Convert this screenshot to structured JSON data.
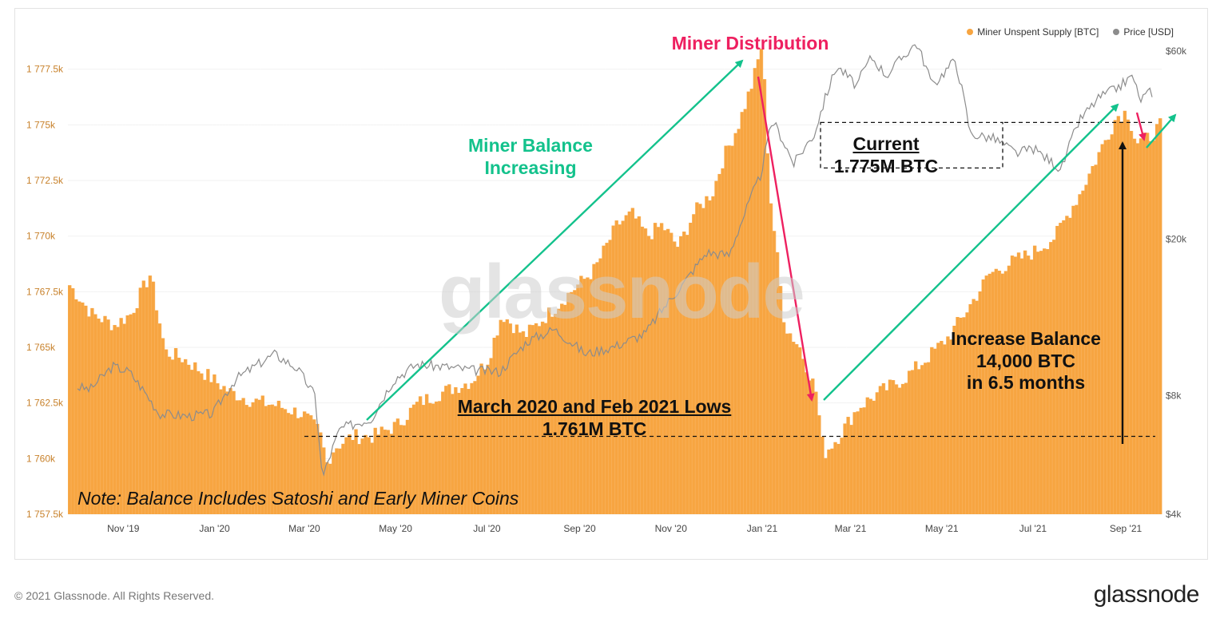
{
  "legend": {
    "supply_label": "Miner Unspent Supply [BTC]",
    "price_label": "Price [USD]"
  },
  "watermark": "glassnode",
  "colors": {
    "supply": "#f7a541",
    "price": "#8c8c8c",
    "green": "#13c28c",
    "red": "#ee2060",
    "axis_left": "#c8822c"
  },
  "annotations": {
    "miner_distribution": "Miner Distribution",
    "balance_increasing_1": "Miner Balance",
    "balance_increasing_2": "Increasing",
    "current_1": "Current",
    "current_2": "1.775M BTC",
    "lows_1": "March 2020 and Feb 2021 Lows",
    "lows_2": "1.761M BTC",
    "increase_1": "Increase Balance",
    "increase_2": "14,000 BTC",
    "increase_3": "in 6.5 months",
    "note": "Note: Balance Includes Satoshi and Early Miner Coins"
  },
  "footer": {
    "copyright": "© 2021 Glassnode. All Rights Reserved.",
    "brand": "glassnode"
  },
  "chart_data": {
    "type": "bar",
    "title": "",
    "x_tick_labels": [
      "Nov '19",
      "Jan '20",
      "Mar '20",
      "May '20",
      "Jul '20",
      "Sep '20",
      "Nov '20",
      "Jan '21",
      "Mar '21",
      "May '21",
      "Jul '21",
      "Sep '21"
    ],
    "x_range": [
      "2019-09-25",
      "2021-09-25"
    ],
    "y_left": {
      "label": "Miner Unspent Supply [BTC]",
      "ticks": [
        "1 757.5k",
        "1 760k",
        "1 762.5k",
        "1 765k",
        "1 767.5k",
        "1 770k",
        "1 772.5k",
        "1 775k",
        "1 777.5k"
      ],
      "range": [
        1757500,
        1779500
      ]
    },
    "y_right": {
      "label": "Price [USD]",
      "scale": "log",
      "ticks": [
        "$4k",
        "$8k",
        "$20k",
        "$60k"
      ],
      "range": [
        4000,
        70000
      ]
    },
    "series": [
      {
        "name": "Miner Unspent Supply [BTC]",
        "kind": "bar",
        "points": [
          [
            "2019-09-25",
            1767800
          ],
          [
            "2019-10-10",
            1766500
          ],
          [
            "2019-10-25",
            1766000
          ],
          [
            "2019-11-05",
            1766500
          ],
          [
            "2019-11-18",
            1768300
          ],
          [
            "2019-11-28",
            1764800
          ],
          [
            "2019-12-10",
            1764500
          ],
          [
            "2019-12-25",
            1763800
          ],
          [
            "2020-01-10",
            1763000
          ],
          [
            "2020-01-25",
            1762600
          ],
          [
            "2020-02-10",
            1762400
          ],
          [
            "2020-02-28",
            1762000
          ],
          [
            "2020-03-10",
            1761200
          ],
          [
            "2020-03-15",
            1759800
          ],
          [
            "2020-03-20",
            1760500
          ],
          [
            "2020-04-01",
            1761000
          ],
          [
            "2020-04-15",
            1761000
          ],
          [
            "2020-05-01",
            1761500
          ],
          [
            "2020-05-15",
            1762500
          ],
          [
            "2020-06-01",
            1763000
          ],
          [
            "2020-06-20",
            1763500
          ],
          [
            "2020-07-01",
            1764500
          ],
          [
            "2020-07-10",
            1766500
          ],
          [
            "2020-07-25",
            1765500
          ],
          [
            "2020-08-10",
            1766500
          ],
          [
            "2020-08-25",
            1767500
          ],
          [
            "2020-09-10",
            1768500
          ],
          [
            "2020-09-25",
            1770500
          ],
          [
            "2020-10-05",
            1771000
          ],
          [
            "2020-10-15",
            1770000
          ],
          [
            "2020-10-25",
            1770500
          ],
          [
            "2020-11-05",
            1769500
          ],
          [
            "2020-11-15",
            1771000
          ],
          [
            "2020-11-28",
            1772000
          ],
          [
            "2020-12-05",
            1773500
          ],
          [
            "2020-12-15",
            1775000
          ],
          [
            "2020-12-25",
            1777000
          ],
          [
            "2020-12-31",
            1778700
          ],
          [
            "2021-01-05",
            1772000
          ],
          [
            "2021-01-15",
            1766000
          ],
          [
            "2021-01-25",
            1765000
          ],
          [
            "2021-02-05",
            1763000
          ],
          [
            "2021-02-10",
            1760200
          ],
          [
            "2021-02-20",
            1761000
          ],
          [
            "2021-03-05",
            1762300
          ],
          [
            "2021-03-20",
            1763000
          ],
          [
            "2021-04-05",
            1763600
          ],
          [
            "2021-04-20",
            1764500
          ],
          [
            "2021-05-05",
            1765500
          ],
          [
            "2021-05-20",
            1767000
          ],
          [
            "2021-06-01",
            1768300
          ],
          [
            "2021-06-15",
            1768800
          ],
          [
            "2021-07-01",
            1769300
          ],
          [
            "2021-07-15",
            1770000
          ],
          [
            "2021-08-01",
            1772000
          ],
          [
            "2021-08-15",
            1774000
          ],
          [
            "2021-08-25",
            1775400
          ],
          [
            "2021-09-01",
            1775600
          ],
          [
            "2021-09-07",
            1774200
          ],
          [
            "2021-09-15",
            1774400
          ],
          [
            "2021-09-25",
            1775100
          ]
        ]
      },
      {
        "name": "Price [USD]",
        "kind": "line",
        "points": [
          [
            "2019-09-25",
            8500
          ],
          [
            "2019-10-10",
            8300
          ],
          [
            "2019-10-25",
            9500
          ],
          [
            "2019-11-05",
            9200
          ],
          [
            "2019-11-25",
            7200
          ],
          [
            "2019-12-15",
            7100
          ],
          [
            "2019-12-31",
            7200
          ],
          [
            "2020-01-15",
            8800
          ],
          [
            "2020-02-10",
            10200
          ],
          [
            "2020-02-25",
            9400
          ],
          [
            "2020-03-08",
            8000
          ],
          [
            "2020-03-13",
            4900
          ],
          [
            "2020-03-25",
            6600
          ],
          [
            "2020-04-15",
            7000
          ],
          [
            "2020-04-30",
            8800
          ],
          [
            "2020-05-15",
            9600
          ],
          [
            "2020-06-01",
            9500
          ],
          [
            "2020-06-20",
            9300
          ],
          [
            "2020-07-10",
            9200
          ],
          [
            "2020-07-28",
            11000
          ],
          [
            "2020-08-15",
            11800
          ],
          [
            "2020-09-05",
            10200
          ],
          [
            "2020-09-25",
            10700
          ],
          [
            "2020-10-15",
            11500
          ],
          [
            "2020-10-28",
            13500
          ],
          [
            "2020-11-10",
            15500
          ],
          [
            "2020-11-25",
            18500
          ],
          [
            "2020-12-10",
            18200
          ],
          [
            "2020-12-20",
            23000
          ],
          [
            "2020-12-31",
            29000
          ],
          [
            "2021-01-08",
            40000
          ],
          [
            "2021-01-22",
            31000
          ],
          [
            "2021-02-05",
            37000
          ],
          [
            "2021-02-20",
            55000
          ],
          [
            "2021-03-05",
            49000
          ],
          [
            "2021-03-15",
            58000
          ],
          [
            "2021-03-25",
            52000
          ],
          [
            "2021-04-14",
            63000
          ],
          [
            "2021-04-25",
            49000
          ],
          [
            "2021-05-10",
            57000
          ],
          [
            "2021-05-20",
            37000
          ],
          [
            "2021-06-05",
            36000
          ],
          [
            "2021-06-20",
            33000
          ],
          [
            "2021-07-01",
            34000
          ],
          [
            "2021-07-20",
            30000
          ],
          [
            "2021-08-01",
            40000
          ],
          [
            "2021-08-15",
            46000
          ],
          [
            "2021-08-25",
            48000
          ],
          [
            "2021-09-06",
            52000
          ],
          [
            "2021-09-10",
            45000
          ],
          [
            "2021-09-18",
            47500
          ],
          [
            "2021-09-25",
            44000
          ]
        ]
      }
    ],
    "reference_lines": [
      {
        "label": "March 2020 and Feb 2021 Lows",
        "value": 1761000
      },
      {
        "label": "Current",
        "value": 1775000
      }
    ]
  }
}
